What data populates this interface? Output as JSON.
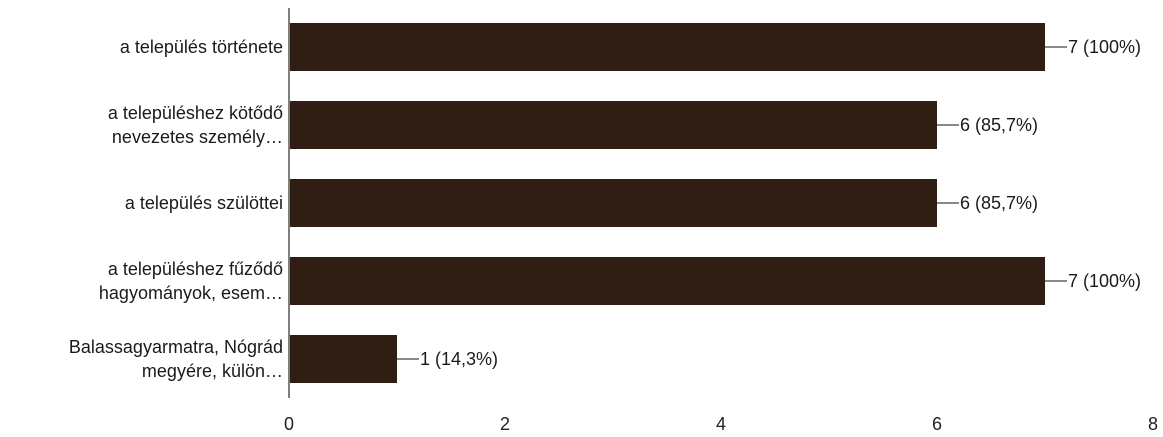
{
  "chart_data": {
    "type": "bar",
    "orientation": "horizontal",
    "categories": [
      [
        "a település története"
      ],
      [
        "a településhez kötődő",
        "nevezetes személy…"
      ],
      [
        "a település szülöttei"
      ],
      [
        "a településhez fűződő",
        "hagyományok, esem…"
      ],
      [
        "Balassagyarmatra, Nógrád",
        "megyére, külön…"
      ]
    ],
    "values": [
      7,
      6,
      6,
      7,
      1
    ],
    "data_labels": [
      "7 (100%)",
      "6 (85,7%)",
      "6 (85,7%)",
      "7 (100%)",
      "1 (14,3%)"
    ],
    "xlim": [
      0,
      8
    ],
    "xticks": [
      "0",
      "2",
      "4",
      "6",
      "8"
    ],
    "title": "",
    "xlabel": "",
    "ylabel": "",
    "grid": false,
    "colors": {
      "bar": "#301e14",
      "tick_label": "#222222"
    }
  }
}
